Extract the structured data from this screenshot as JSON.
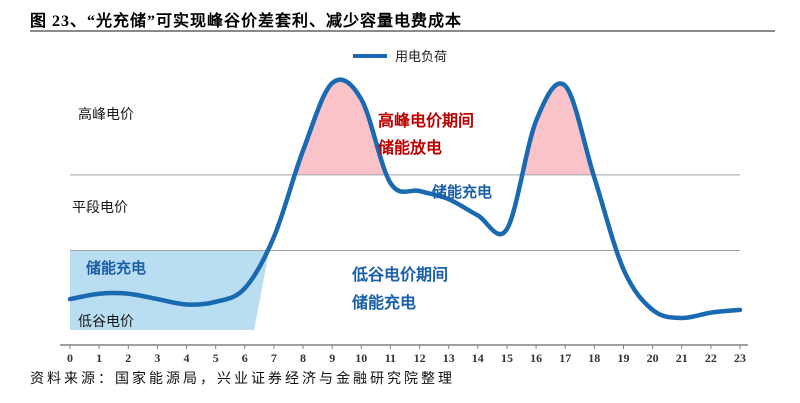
{
  "title": "图 23、“光充储”可实现峰谷价差套利、减少容量电费成本",
  "legend": {
    "label": "用电负荷"
  },
  "y_labels": {
    "peak": "高峰电价",
    "flat": "平段电价",
    "valley": "低谷电价"
  },
  "annotations": {
    "peak": {
      "line1": "高峰电价期间",
      "line2": "储能放电"
    },
    "flat_charge": "储能充电",
    "valley": {
      "line1": "低谷电价期间",
      "line2": "储能充电"
    },
    "left_charge": "储能充电"
  },
  "source": "资料来源：国家能源局，兴业证券经济与金融研究院整理",
  "colors": {
    "line": "#1a6ab2",
    "valley_fill": "#b9ddf1",
    "peak_fill": "#f9c3c9",
    "peak_text": "#c00000",
    "storage_text": "#1a5fa8",
    "gridline": "#a0a0a0",
    "axis": "#808080",
    "tick_text": "#333333"
  },
  "chart_data": {
    "type": "line",
    "title": "用电负荷",
    "series_name": "用电负荷",
    "x": [
      0,
      1,
      2,
      3,
      4,
      5,
      6,
      7,
      8,
      9,
      10,
      11,
      12,
      13,
      14,
      15,
      16,
      17,
      18,
      19,
      20,
      21,
      22,
      23
    ],
    "values": [
      17,
      19,
      19,
      17,
      15,
      16,
      21,
      40,
      72,
      97,
      91,
      60,
      57,
      54,
      48,
      43,
      83,
      96,
      62,
      28,
      13,
      10,
      12,
      13
    ],
    "ylim": [
      0,
      100
    ],
    "y_tiers": [
      "低谷电价",
      "平段电价",
      "高峰电价"
    ],
    "tier_boundaries": {
      "peak_flat_pct": 63,
      "flat_valley_pct": 35
    },
    "regions": [
      {
        "name": "valley-charge",
        "label": "低谷电价期间储能充电",
        "hours": [
          0,
          6.7
        ]
      },
      {
        "name": "peak-discharge",
        "label": "高峰电价期间储能放电",
        "rule": "curve above peak/flat line"
      }
    ],
    "legend_position": "top-center",
    "grid": "horizontal tier boundaries only"
  }
}
